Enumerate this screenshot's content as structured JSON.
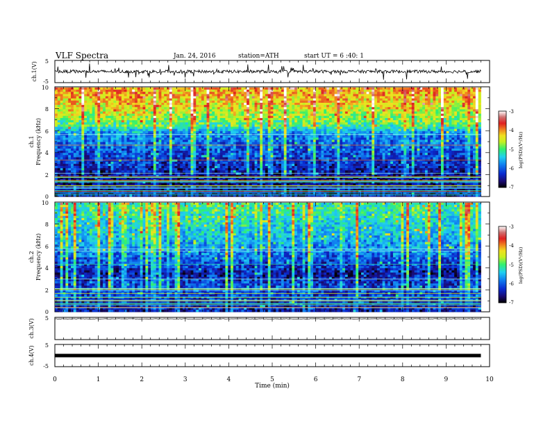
{
  "header": {
    "title": "VLF Spectra",
    "date": "Jan. 24, 2016",
    "station": "station=ATH",
    "start_ut": "start UT = 6 :40: 1"
  },
  "colors": {
    "background": "#ffffff",
    "axis": "#000000",
    "colormap": [
      "#000000",
      "#1a0a6e",
      "#0a1fb0",
      "#0a4ce8",
      "#1495f0",
      "#20d0f0",
      "#30f070",
      "#c8f020",
      "#f0e020",
      "#f08020",
      "#e02020",
      "#c05050",
      "#f0c0c0",
      "#ffffff"
    ]
  },
  "chart_data": [
    {
      "type": "line",
      "panel": "ch1-waveform",
      "ylabel": "ch.1(V)",
      "ylim": [
        -5,
        5
      ],
      "yticks": [
        "5",
        "-5"
      ],
      "xlim": [
        0,
        10
      ],
      "description_level": "noisy waveform around about 0 V, spikes to about ±3 V"
    },
    {
      "type": "heatmap",
      "panel": "ch1-spectrogram",
      "ylabel": "ch.1",
      "ylabel2": "Frequency (kHz)",
      "ylim": [
        0,
        10
      ],
      "yticks": [
        "10",
        "8",
        "6",
        "4",
        "2",
        "0"
      ],
      "xlim": [
        0,
        10
      ],
      "data_end_min": 9.8,
      "colorbar": {
        "label": "log(PSD)(V²/Hz)",
        "ticks": [
          "-3",
          "-4",
          "-5",
          "-6",
          "-7"
        ],
        "range": [
          -7,
          -3
        ]
      },
      "band_profile_logpsd": [
        {
          "f_khz": 0.5,
          "level": -6.6
        },
        {
          "f_khz": 2.0,
          "level": -6.6
        },
        {
          "f_khz": 3.0,
          "level": -6.4
        },
        {
          "f_khz": 4.5,
          "level": -6.1
        },
        {
          "f_khz": 5.8,
          "level": -5.9
        },
        {
          "f_khz": 6.5,
          "level": -5.1
        },
        {
          "f_khz": 7.5,
          "level": -4.7
        },
        {
          "f_khz": 8.5,
          "level": -4.4
        },
        {
          "f_khz": 9.5,
          "level": -4.2
        }
      ]
    },
    {
      "type": "heatmap",
      "panel": "ch2-spectrogram",
      "ylabel": "ch.2",
      "ylabel2": "Frequency (kHz)",
      "ylim": [
        0,
        10
      ],
      "yticks": [
        "10",
        "8",
        "6",
        "4",
        "2",
        "0"
      ],
      "xlim": [
        0,
        10
      ],
      "data_end_min": 9.8,
      "colorbar": {
        "label": "log(PSD)(V²/Hz)",
        "ticks": [
          "-3",
          "-4",
          "-5",
          "-6",
          "-7"
        ],
        "range": [
          -7,
          -3
        ]
      },
      "band_profile_logpsd": [
        {
          "f_khz": 0.5,
          "level": -6.5
        },
        {
          "f_khz": 2.0,
          "level": -6.2
        },
        {
          "f_khz": 3.5,
          "level": -6.6
        },
        {
          "f_khz": 5.0,
          "level": -6.1
        },
        {
          "f_khz": 7.0,
          "level": -5.6
        },
        {
          "f_khz": 8.5,
          "level": -5.4
        },
        {
          "f_khz": 9.5,
          "level": -5.2
        }
      ]
    },
    {
      "type": "line",
      "panel": "ch3-waveform",
      "ylabel": "ch.3(V)",
      "ylim": [
        -5,
        5
      ],
      "yticks": [
        "5"
      ],
      "xlim": [
        0,
        10
      ],
      "level_v": 4.3
    },
    {
      "type": "line",
      "panel": "ch4-waveform",
      "ylabel": "ch.4(V)",
      "ylim": [
        -5,
        5
      ],
      "yticks": [
        "5",
        "-5"
      ],
      "xlim": [
        0,
        10
      ],
      "level_v": 0
    }
  ],
  "xaxis": {
    "label": "Time (min)",
    "ticks": [
      "0",
      "1",
      "2",
      "3",
      "4",
      "5",
      "6",
      "7",
      "8",
      "9",
      "10"
    ]
  }
}
